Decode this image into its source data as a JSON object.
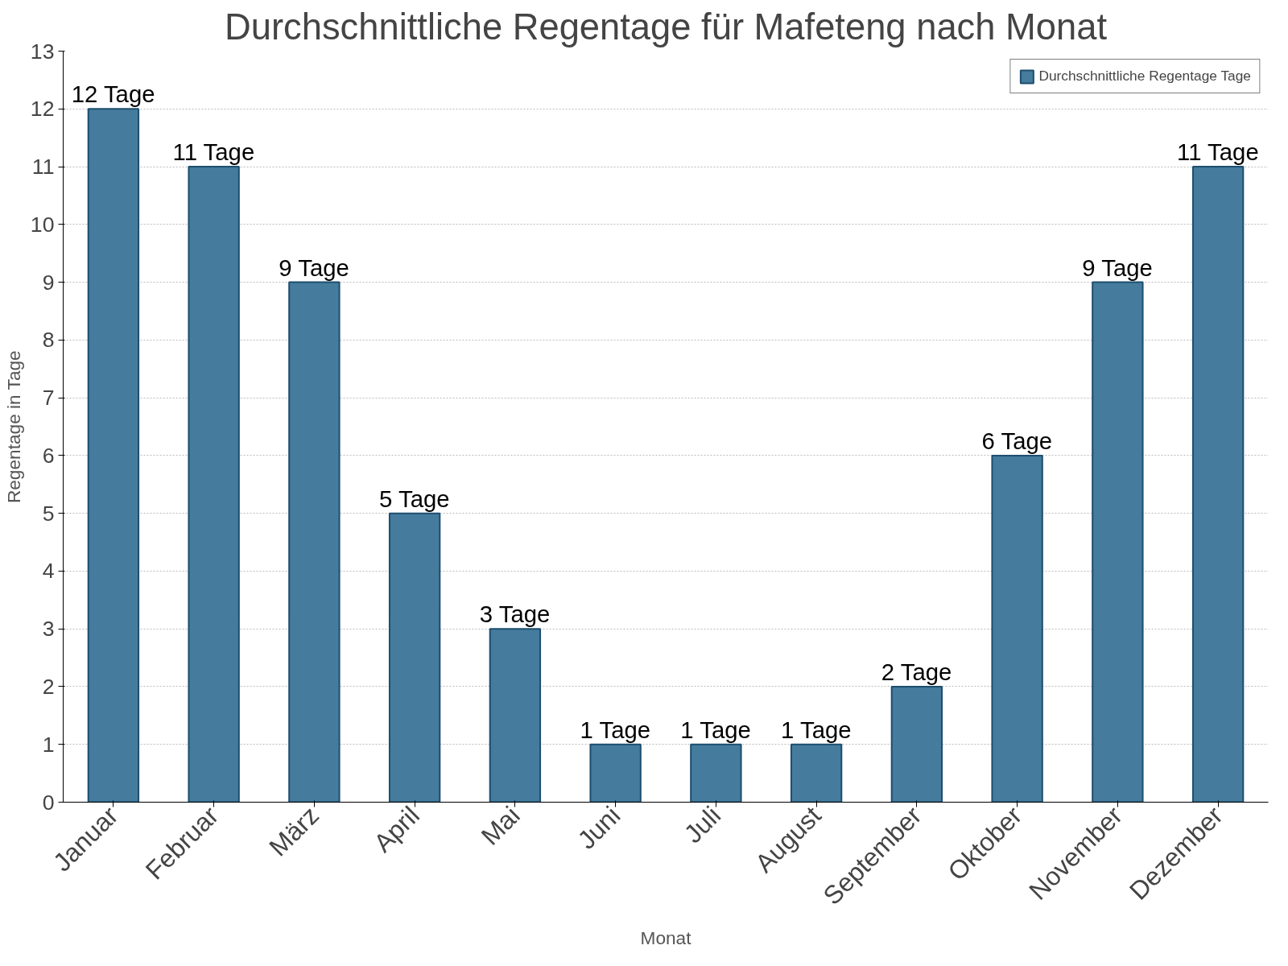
{
  "chart_data": {
    "type": "bar",
    "title": "Durchschnittliche Regentage für Mafeteng nach Monat",
    "xlabel": "Monat",
    "ylabel": "Regentage in Tage",
    "categories": [
      "Januar",
      "Februar",
      "März",
      "April",
      "Mai",
      "Juni",
      "Juli",
      "August",
      "September",
      "Oktober",
      "November",
      "Dezember"
    ],
    "series": [
      {
        "name": "Durchschnittliche Regentage Tage",
        "color": "#457b9d",
        "values": [
          12,
          11,
          9,
          5,
          3,
          1,
          1,
          1,
          2,
          6,
          9,
          11
        ],
        "value_labels": [
          "12 Tage",
          "11 Tage",
          "9 Tage",
          "5 Tage",
          "3 Tage",
          "1 Tage",
          "1 Tage",
          "1 Tage",
          "2 Tage",
          "6 Tage",
          "9 Tage",
          "11 Tage"
        ]
      }
    ],
    "ylim": [
      0,
      13
    ],
    "yticks": [
      0,
      1,
      2,
      3,
      4,
      5,
      6,
      7,
      8,
      9,
      10,
      11,
      12,
      13
    ],
    "grid": "y",
    "legend": "top right"
  }
}
